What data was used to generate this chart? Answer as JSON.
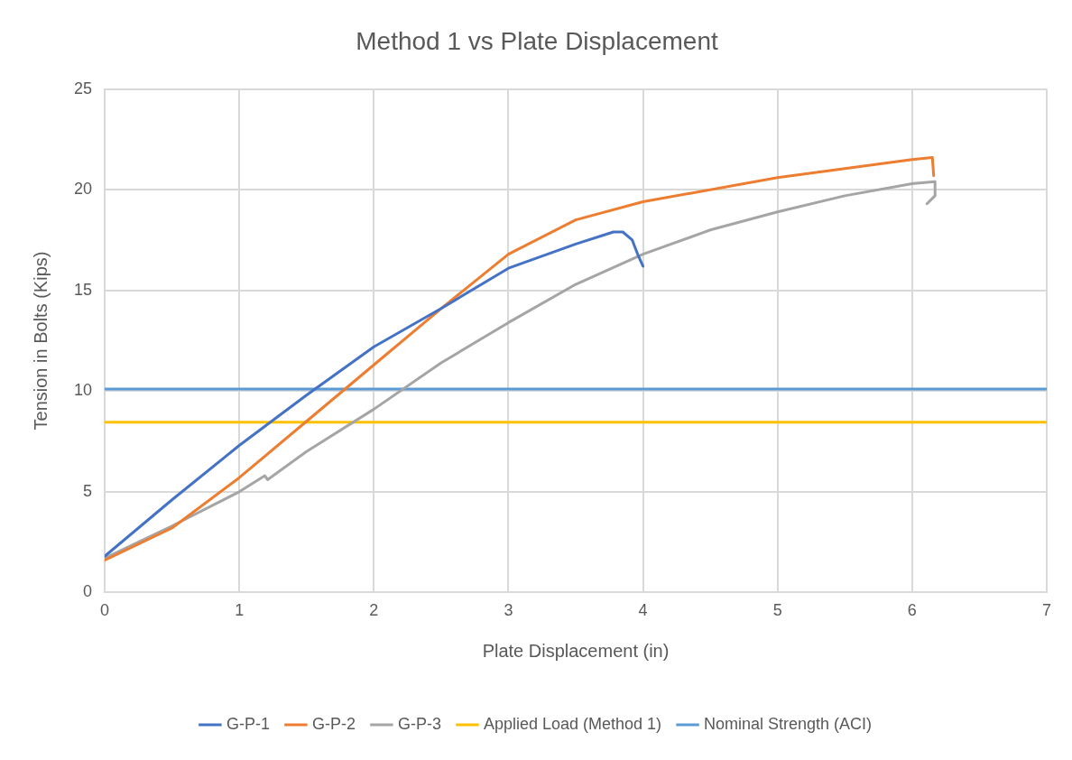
{
  "chart_data": {
    "type": "line",
    "title": "Method 1 vs Plate Displacement",
    "xlabel": "Plate Displacement (in)",
    "ylabel": "Tension in Bolts (Kips)",
    "xlim": [
      0,
      7
    ],
    "xticks": [
      0,
      1,
      2,
      3,
      4,
      5,
      6,
      7
    ],
    "ylim": [
      0,
      25
    ],
    "yticks": [
      0,
      5,
      10,
      15,
      20,
      25
    ],
    "grid": true,
    "legend": "bottom",
    "marker": "none",
    "line_style": "solid",
    "series": [
      {
        "name": "G-P-1",
        "color": "#4472c4",
        "x": [
          0,
          0.5,
          1,
          1.5,
          2,
          2.5,
          3,
          3.5,
          3.78,
          3.85,
          3.92,
          3.96,
          4.0
        ],
        "values": [
          1.8,
          4.6,
          7.3,
          9.8,
          12.2,
          14.1,
          16.1,
          17.3,
          17.9,
          17.9,
          17.5,
          16.8,
          16.2
        ]
      },
      {
        "name": "G-P-2",
        "color": "#ed7d31",
        "x": [
          0,
          0.5,
          1,
          1.5,
          2,
          2.5,
          3,
          3.5,
          4,
          5,
          6,
          6.15,
          6.16
        ],
        "values": [
          1.6,
          3.2,
          5.7,
          8.5,
          11.3,
          14.1,
          16.8,
          18.5,
          19.4,
          20.6,
          21.5,
          21.6,
          20.7
        ]
      },
      {
        "name": "G-P-3",
        "color": "#a5a5a5",
        "x": [
          0,
          0.5,
          1,
          1.19,
          1.21,
          1.5,
          2,
          2.5,
          3,
          3.5,
          4,
          4.5,
          5,
          5.5,
          6,
          6.17,
          6.17,
          6.11
        ],
        "values": [
          1.7,
          3.3,
          5.0,
          5.8,
          5.6,
          7.0,
          9.1,
          11.4,
          13.4,
          15.3,
          16.8,
          18.0,
          18.9,
          19.7,
          20.3,
          20.4,
          19.7,
          19.3
        ]
      },
      {
        "name": "Applied Load (Method 1)",
        "color": "#ffc000",
        "x": [
          0,
          7
        ],
        "values": [
          8.45,
          8.45
        ]
      },
      {
        "name": "Nominal Strength (ACI)",
        "color": "#5b9bd5",
        "x": [
          0,
          7
        ],
        "values": [
          10.1,
          10.1
        ]
      }
    ]
  }
}
